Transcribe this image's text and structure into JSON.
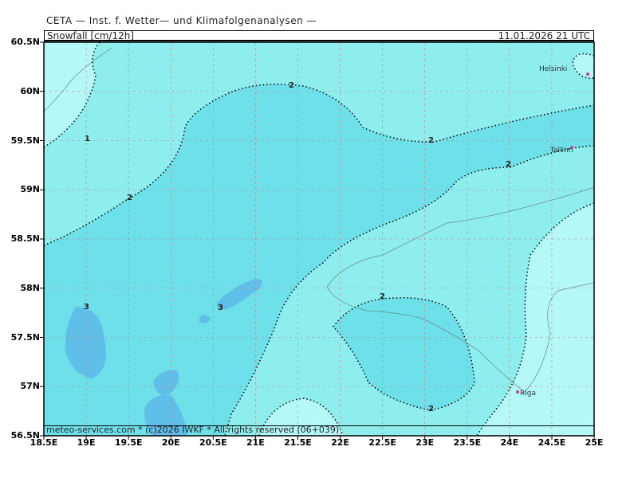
{
  "header": "CETA — Inst. f. Wetter— und Klimafolgenanalysen —",
  "variable": "Snowfall [cm/12h]",
  "valid_time": "11.01.2026 21 UTC",
  "credit": "meteo-services.com * (c)2026 IWKF * All rights reserved (06+039)",
  "lat_labels": [
    "60.5N",
    "60N",
    "59.5N",
    "59N",
    "58.5N",
    "58N",
    "57.5N",
    "57N",
    "56.5N"
  ],
  "lon_labels": [
    "18.5E",
    "19E",
    "19.5E",
    "20E",
    "20.5E",
    "21E",
    "21.5E",
    "22E",
    "22.5E",
    "23E",
    "23.5E",
    "24E",
    "24.5E",
    "25E"
  ],
  "contour_labels": [
    "1",
    "2",
    "2",
    "2",
    "2",
    "2",
    "2",
    "3",
    "3"
  ],
  "cities": [
    "Helsinki",
    "Tallinn",
    "Riga"
  ],
  "colors": {
    "lt1": "#b5f8f8",
    "c1_2": "#8eeeee",
    "c2_3": "#6ee0ea",
    "gt3": "#5fbfe8",
    "city_marker": "#e0309a"
  }
}
